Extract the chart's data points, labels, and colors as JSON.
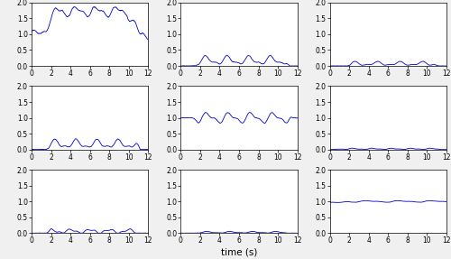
{
  "xlabel": "time (s)",
  "xlim": [
    0,
    12
  ],
  "ylim": [
    0,
    2
  ],
  "yticks": [
    0,
    0.5,
    1,
    1.5,
    2
  ],
  "xticks": [
    0,
    2,
    4,
    6,
    8,
    10,
    12
  ],
  "line_color": "#0000cc",
  "line_width": 0.6,
  "figsize": [
    5.0,
    2.87
  ],
  "dpi": 100,
  "fig_facecolor": "#f0f0f0",
  "ax_facecolor": "#ffffff",
  "tick_labelsize": 5.5,
  "xlabel_fontsize": 7.5
}
